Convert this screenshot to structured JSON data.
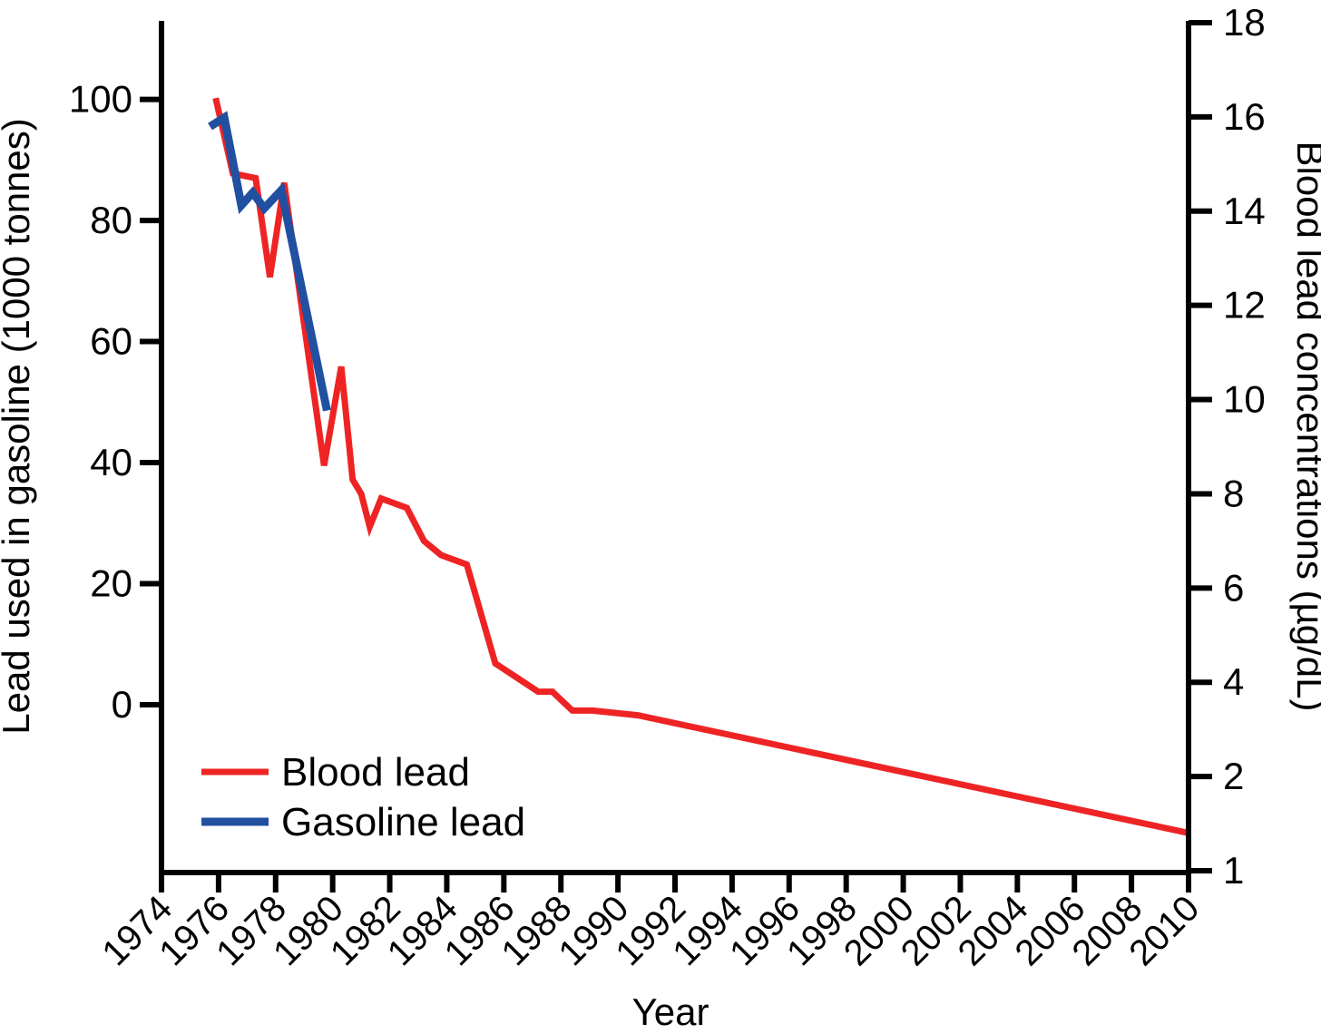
{
  "chart_data": {
    "type": "line",
    "title": "",
    "xlabel": "Year",
    "x_axis": {
      "range": [
        1974,
        2010
      ],
      "ticks": [
        1974,
        1976,
        1978,
        1980,
        1982,
        1984,
        1986,
        1988,
        1990,
        1992,
        1994,
        1996,
        1998,
        2000,
        2002,
        2004,
        2006,
        2008,
        2010
      ],
      "tick_label_rotation_deg": -45
    },
    "left_axis": {
      "label": "Lead used in gasoline (1000 tonnes)",
      "ticks": [
        100,
        80,
        60,
        40,
        20,
        0
      ],
      "scale": "linear"
    },
    "right_axis": {
      "label": "Blood lead concentrations (µg/dL)",
      "ticks": [
        18,
        16,
        14,
        12,
        10,
        8,
        6,
        4,
        2,
        1
      ],
      "scale": "equal-spaced-tick-labels"
    },
    "grid": "off",
    "legend_position": "bottom-left-inside",
    "series": [
      {
        "name": "Blood lead",
        "axis": "right",
        "color": "#ee2424",
        "points": [
          [
            1975.9,
            16.4
          ],
          [
            1976.5,
            14.8
          ],
          [
            1977.3,
            14.7
          ],
          [
            1977.8,
            12.6
          ],
          [
            1978.3,
            14.6
          ],
          [
            1979.7,
            8.6
          ],
          [
            1980.3,
            10.7
          ],
          [
            1980.7,
            8.3
          ],
          [
            1981.0,
            8.0
          ],
          [
            1981.3,
            7.3
          ],
          [
            1981.7,
            7.9
          ],
          [
            1982.6,
            7.7
          ],
          [
            1983.2,
            7.0
          ],
          [
            1983.8,
            6.7
          ],
          [
            1984.7,
            6.5
          ],
          [
            1985.7,
            4.4
          ],
          [
            1987.2,
            3.8
          ],
          [
            1987.7,
            3.8
          ],
          [
            1988.4,
            3.4
          ],
          [
            1989.1,
            3.4
          ],
          [
            1990.7,
            3.3
          ],
          [
            2010.0,
            1.4
          ]
        ]
      },
      {
        "name": "Gasoline lead",
        "axis": "left",
        "color": "#2150a1",
        "points": [
          [
            1975.7,
            95.5
          ],
          [
            1976.2,
            97.0
          ],
          [
            1976.8,
            82.5
          ],
          [
            1977.2,
            84.6
          ],
          [
            1977.6,
            82.0
          ],
          [
            1978.2,
            85.0
          ],
          [
            1979.8,
            48.6
          ]
        ]
      }
    ]
  }
}
